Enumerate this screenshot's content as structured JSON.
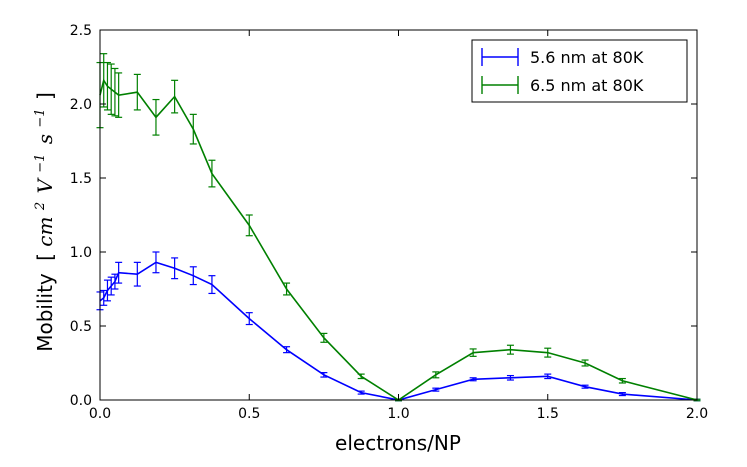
{
  "chart_data": {
    "type": "line",
    "title": "",
    "xlabel": "electrons/NP",
    "ylabel": {
      "word": "Mobility",
      "math": [
        "[",
        "cm",
        "2",
        "V",
        "−1",
        "s",
        "−1",
        "]"
      ]
    },
    "xlim": [
      0.0,
      2.0
    ],
    "ylim": [
      0.0,
      2.5
    ],
    "xticks": [
      0.0,
      0.5,
      1.0,
      1.5,
      2.0
    ],
    "xtick_labels": [
      "0.0",
      "0.5",
      "1.0",
      "1.5",
      "2.0"
    ],
    "yticks": [
      0.0,
      0.5,
      1.0,
      1.5,
      2.0,
      2.5
    ],
    "ytick_labels": [
      "0.0",
      "0.5",
      "1.0",
      "1.5",
      "2.0",
      "2.5"
    ],
    "grid": false,
    "legend_position": "top-right",
    "series": [
      {
        "name": "5.6 nm at 80K",
        "color": "#0000ff",
        "x": [
          0.0,
          0.0125,
          0.025,
          0.0375,
          0.05,
          0.0625,
          0.125,
          0.1875,
          0.25,
          0.3125,
          0.375,
          0.5,
          0.625,
          0.75,
          0.875,
          1.0,
          1.125,
          1.25,
          1.375,
          1.5,
          1.625,
          1.75,
          2.0
        ],
        "y": [
          0.67,
          0.69,
          0.74,
          0.77,
          0.8,
          0.86,
          0.85,
          0.93,
          0.89,
          0.84,
          0.78,
          0.55,
          0.34,
          0.17,
          0.05,
          0.0,
          0.07,
          0.14,
          0.15,
          0.16,
          0.09,
          0.04,
          0.0
        ],
        "err": [
          0.06,
          0.05,
          0.07,
          0.06,
          0.05,
          0.07,
          0.08,
          0.07,
          0.07,
          0.06,
          0.06,
          0.04,
          0.02,
          0.015,
          0.01,
          0.005,
          0.01,
          0.01,
          0.015,
          0.015,
          0.01,
          0.01,
          0.005
        ]
      },
      {
        "name": "6.5 nm at 80K",
        "color": "#008000",
        "x": [
          0.0,
          0.0125,
          0.025,
          0.0375,
          0.05,
          0.0625,
          0.125,
          0.1875,
          0.25,
          0.3125,
          0.375,
          0.5,
          0.625,
          0.75,
          0.875,
          1.0,
          1.125,
          1.25,
          1.375,
          1.5,
          1.625,
          1.75,
          2.0
        ],
        "y": [
          2.06,
          2.16,
          2.12,
          2.1,
          2.08,
          2.06,
          2.08,
          1.91,
          2.05,
          1.83,
          1.53,
          1.18,
          0.75,
          0.42,
          0.16,
          0.0,
          0.17,
          0.32,
          0.34,
          0.32,
          0.25,
          0.13,
          0.0
        ],
        "err": [
          0.22,
          0.18,
          0.16,
          0.17,
          0.16,
          0.15,
          0.12,
          0.12,
          0.11,
          0.1,
          0.09,
          0.07,
          0.04,
          0.03,
          0.015,
          0.005,
          0.02,
          0.025,
          0.03,
          0.03,
          0.02,
          0.015,
          0.005
        ]
      }
    ]
  }
}
